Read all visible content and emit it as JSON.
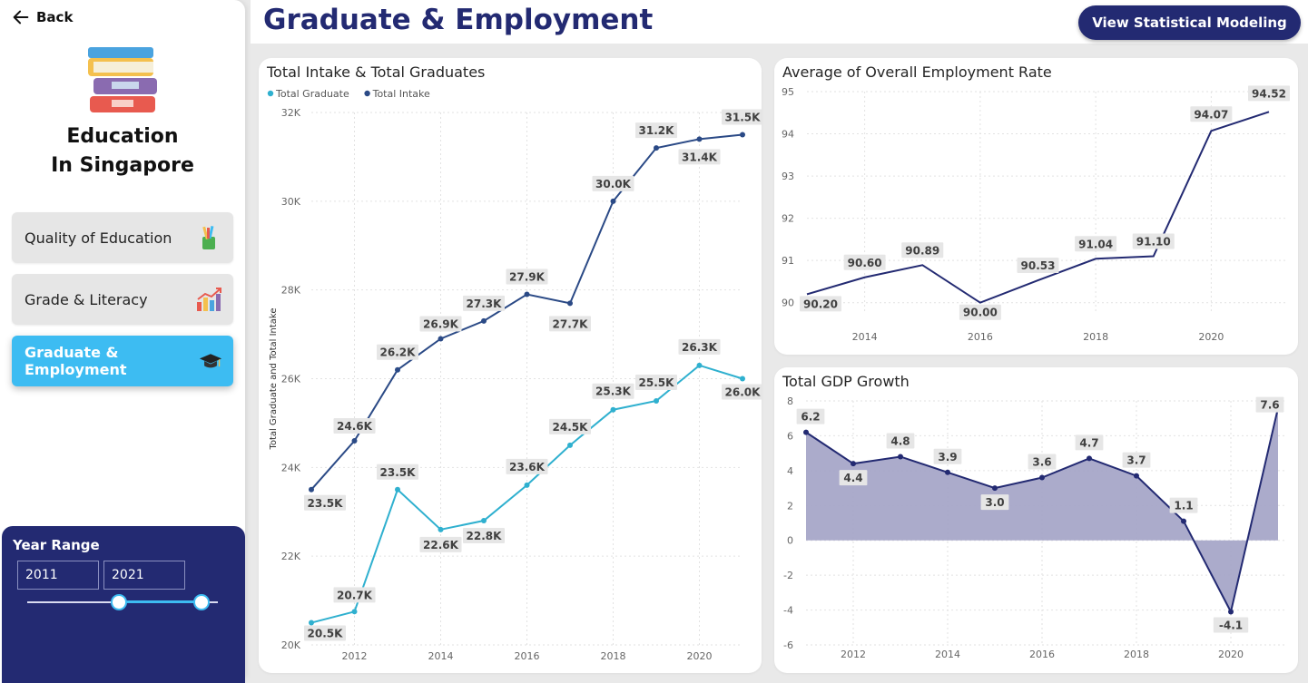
{
  "sidebar": {
    "back_label": "Back",
    "app_title_line1": "Education",
    "app_title_line2": "In Singapore",
    "nav": [
      {
        "label": "Quality of Education",
        "icon": "pencil-cup-icon"
      },
      {
        "label": "Grade & Literacy",
        "icon": "bar-chart-icon"
      },
      {
        "label": "Graduate & Employment",
        "icon": "graduation-cap-icon",
        "active": true
      }
    ],
    "year_range": {
      "title": "Year Range",
      "start": "2011",
      "end": "2021"
    }
  },
  "header": {
    "title": "Graduate & Employment",
    "button_label": "View Statistical Modeling"
  },
  "colors": {
    "navy": "#232a72",
    "accent": "#3dbcf2",
    "intake_line": "#2b4a86",
    "graduate_line": "#2fb0cf",
    "gdp_fill": "#a6a7c8"
  },
  "chart_data": [
    {
      "type": "line",
      "title": "Total Intake & Total Graduates",
      "ylabel": "Total Graduate and Total Intake",
      "x": [
        2011,
        2012,
        2013,
        2014,
        2015,
        2016,
        2017,
        2018,
        2019,
        2020,
        2021
      ],
      "x_ticks": [
        "2012",
        "2014",
        "2016",
        "2018",
        "2020"
      ],
      "y_ticks": [
        "20K",
        "22K",
        "24K",
        "26K",
        "28K",
        "30K",
        "32K"
      ],
      "ylim": [
        20000,
        32000
      ],
      "legend": "top-left",
      "series": [
        {
          "name": "Total Graduate",
          "values": [
            20500,
            20750,
            23500,
            22600,
            22800,
            23600,
            24500,
            25300,
            25500,
            26300,
            26000
          ],
          "labels": [
            "20.5K",
            "20.7K",
            "23.5K",
            "22.6K",
            "22.8K",
            "23.6K",
            "24.5K",
            "25.3K",
            "25.5K",
            "26.3K",
            "26.0K"
          ]
        },
        {
          "name": "Total Intake",
          "values": [
            23500,
            24600,
            26200,
            26900,
            27300,
            27900,
            27700,
            30000,
            31200,
            31400,
            31500
          ],
          "labels": [
            "23.5K",
            "24.6K",
            "26.2K",
            "26.9K",
            "27.3K",
            "27.9K",
            "27.7K",
            "30.0K",
            "31.2K",
            "31.4K",
            "31.5K"
          ]
        }
      ]
    },
    {
      "type": "line",
      "title": "Average of Overall Employment Rate",
      "x": [
        2013,
        2014,
        2015,
        2016,
        2017,
        2018,
        2019,
        2020,
        2021
      ],
      "x_ticks": [
        "2014",
        "2016",
        "2018",
        "2020"
      ],
      "y_ticks": [
        "90",
        "91",
        "92",
        "93",
        "94",
        "95"
      ],
      "ylim": [
        89.8,
        95
      ],
      "series": [
        {
          "values": [
            90.2,
            90.6,
            90.89,
            90.0,
            90.53,
            91.04,
            91.1,
            94.07,
            94.52
          ],
          "labels": [
            "90.20",
            "90.60",
            "90.89",
            "90.00",
            "90.53",
            "91.04",
            "91.10",
            "94.07",
            "94.52"
          ]
        }
      ]
    },
    {
      "type": "area",
      "title": "Total GDP Growth",
      "x": [
        2011,
        2012,
        2013,
        2014,
        2015,
        2016,
        2017,
        2018,
        2019,
        2020,
        2021
      ],
      "x_ticks": [
        "2012",
        "2014",
        "2016",
        "2018",
        "2020"
      ],
      "y_ticks": [
        "-6",
        "-4",
        "-2",
        "0",
        "2",
        "4",
        "6",
        "8"
      ],
      "ylim": [
        -6,
        8
      ],
      "series": [
        {
          "values": [
            6.2,
            4.4,
            4.8,
            3.9,
            3.0,
            3.6,
            4.7,
            3.7,
            1.1,
            -4.1,
            7.6
          ],
          "labels": [
            "6.2",
            "4.4",
            "4.8",
            "3.9",
            "3.0",
            "3.6",
            "4.7",
            "3.7",
            "1.1",
            "-4.1",
            "7.6"
          ]
        }
      ]
    }
  ]
}
